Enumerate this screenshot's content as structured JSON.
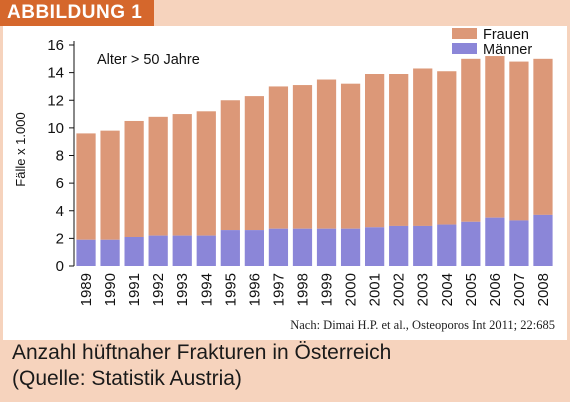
{
  "figure_label": "ABBILDUNG 1",
  "caption": {
    "line1": "Anzahl hüftnaher Frakturen in Österreich",
    "line2": "(Quelle: Statistik Austria)"
  },
  "source_note": "Nach: Dimai H.P. et al., Osteoporos Int 2011; 22:685",
  "colors": {
    "frauen": "#dc9878",
    "maenner": "#8b86d8",
    "tag": "#d5672c",
    "background": "#f6d3bd"
  },
  "chart_data": {
    "type": "bar",
    "stacked": true,
    "title": "",
    "annotation": "Alter > 50 Jahre",
    "xlabel": "",
    "ylabel": "Fälle x 1.000",
    "ylim": [
      0,
      16
    ],
    "yticks": [
      0,
      2,
      4,
      6,
      8,
      10,
      12,
      14,
      16
    ],
    "grid": false,
    "legend_position": "top-right",
    "categories": [
      "1989",
      "1990",
      "1991",
      "1992",
      "1993",
      "1994",
      "1995",
      "1996",
      "1997",
      "1998",
      "1999",
      "2000",
      "2001",
      "2002",
      "2003",
      "2004",
      "2005",
      "2006",
      "2007",
      "2008"
    ],
    "series": [
      {
        "name": "Männer",
        "values": [
          1.9,
          1.9,
          2.1,
          2.2,
          2.2,
          2.2,
          2.6,
          2.6,
          2.7,
          2.7,
          2.7,
          2.7,
          2.8,
          2.9,
          2.9,
          3.0,
          3.2,
          3.5,
          3.3,
          3.7
        ]
      },
      {
        "name": "Frauen",
        "values": [
          7.7,
          7.9,
          8.4,
          8.6,
          8.8,
          9.0,
          9.4,
          9.7,
          10.3,
          10.4,
          10.8,
          10.5,
          11.1,
          11.0,
          11.4,
          11.1,
          11.8,
          11.7,
          11.5,
          11.3
        ]
      }
    ],
    "legend": [
      {
        "name": "Frauen",
        "color_key": "frauen"
      },
      {
        "name": "Männer",
        "color_key": "maenner"
      }
    ]
  }
}
